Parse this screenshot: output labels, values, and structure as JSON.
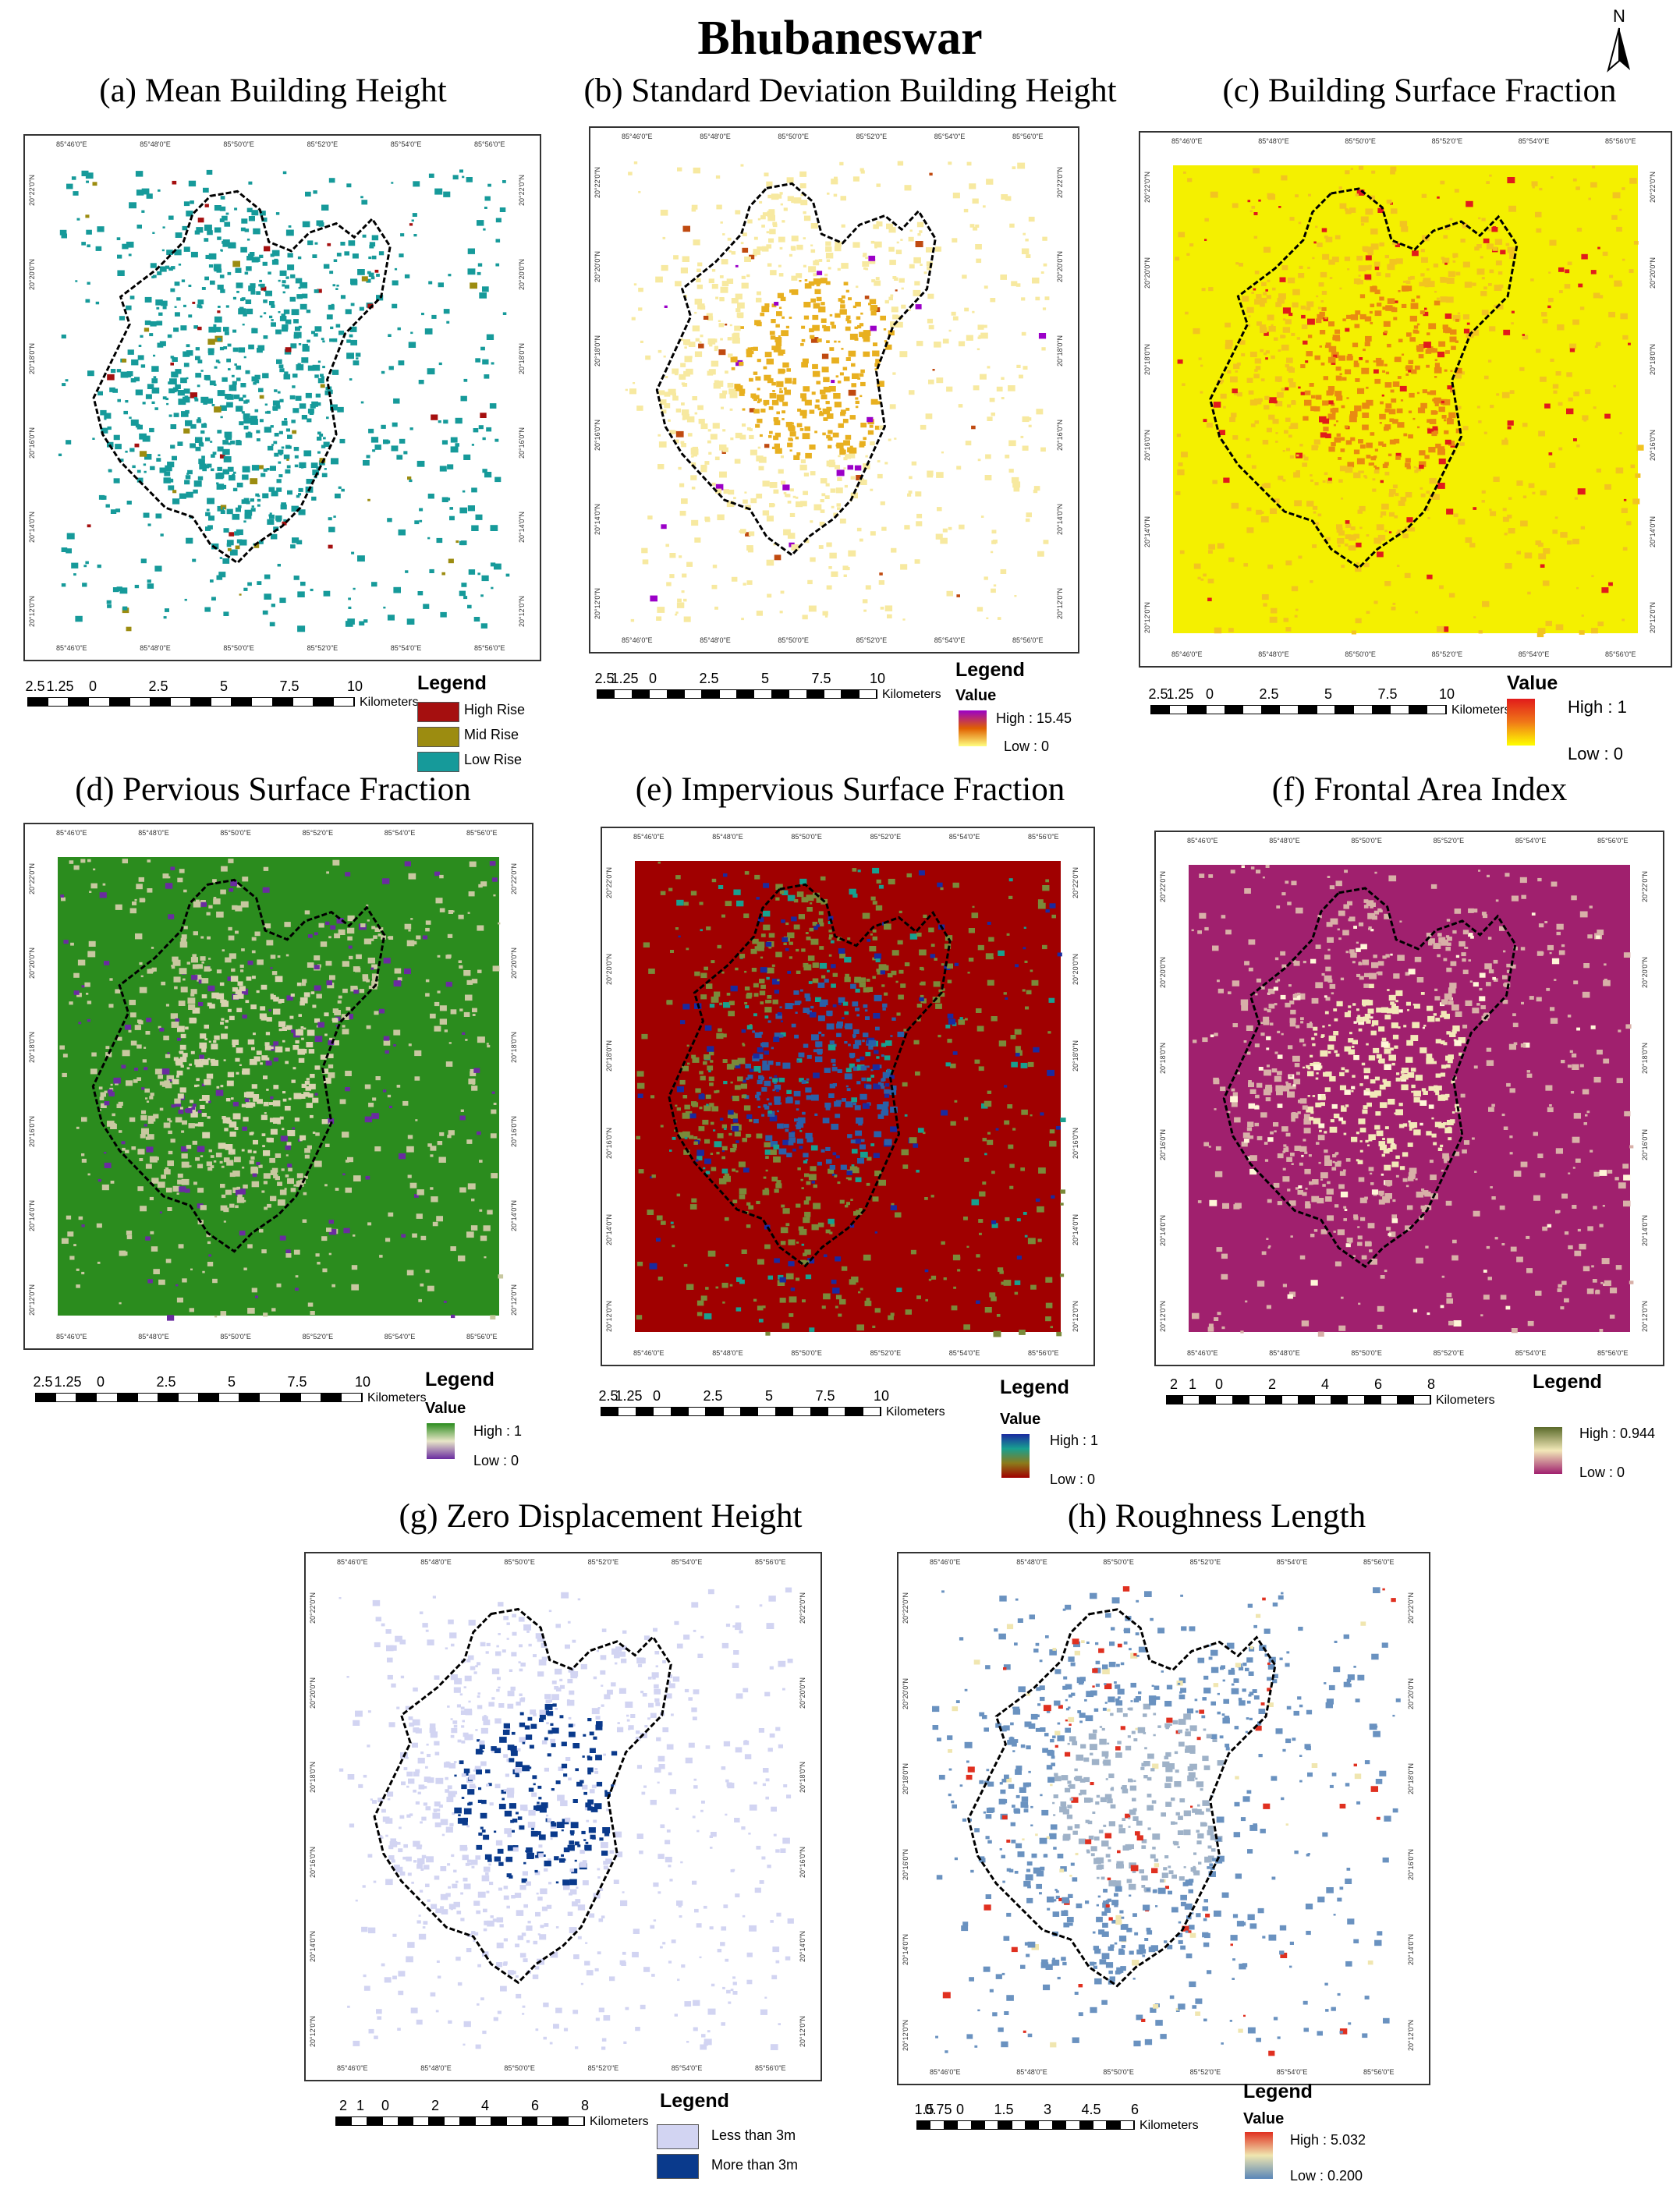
{
  "title": "Bhubaneswar",
  "north_label": "N",
  "panels": {
    "a": {
      "title": "(a) Mean Building Height",
      "scale": [
        "2.5",
        "1.25",
        "0",
        "2.5",
        "5",
        "7.5",
        "10"
      ],
      "unit": "Kilometers",
      "legend_title": "Legend",
      "classes": [
        {
          "label": "High Rise",
          "color": "#a50f0f"
        },
        {
          "label": "Mid Rise",
          "color": "#9c8c10"
        },
        {
          "label": "Low Rise",
          "color": "#169a9a"
        }
      ]
    },
    "b": {
      "title": "(b) Standard Deviation Building Height",
      "scale": [
        "2.5",
        "1.25",
        "0",
        "2.5",
        "5",
        "7.5",
        "10"
      ],
      "unit": "Kilometers",
      "legend_title": "Legend",
      "value_label": "Value",
      "high": "High : 15.45",
      "low": "Low : 0",
      "colors": [
        "#9b00c8",
        "#e06000",
        "#ffff80"
      ]
    },
    "c": {
      "title": "(c) Building Surface Fraction",
      "scale": [
        "2.5",
        "1.25",
        "0",
        "2.5",
        "5",
        "7.5",
        "10"
      ],
      "unit": "Kilometers",
      "value_label": "Value",
      "high": "High : 1",
      "low": "Low : 0",
      "colors": [
        "#e11b1b",
        "#f07818",
        "#ffff00"
      ]
    },
    "d": {
      "title": "(d) Pervious Surface Fraction",
      "scale": [
        "2.5",
        "1.25",
        "0",
        "2.5",
        "5",
        "7.5",
        "10"
      ],
      "unit": "Kilometers",
      "legend_title": "Legend",
      "value_label": "Value",
      "high": "High : 1",
      "low": "Low : 0",
      "colors": [
        "#2b8c1e",
        "#e8e6c8",
        "#6a2ca0"
      ]
    },
    "e": {
      "title": "(e) Impervious Surface Fraction",
      "scale": [
        "2.5",
        "1.25",
        "0",
        "2.5",
        "5",
        "7.5",
        "10"
      ],
      "unit": "Kilometers",
      "legend_title": "Legend",
      "value_label": "Value",
      "high": "High : 1",
      "low": "Low : 0",
      "colors": [
        "#1a2aa0",
        "#18a090",
        "#8c7a1a",
        "#a00000"
      ]
    },
    "f": {
      "title": "(f) Frontal Area Index",
      "scale": [
        "2",
        "1",
        "0",
        "2",
        "4",
        "6",
        "8"
      ],
      "unit": "Kilometers",
      "legend_title": "Legend",
      "high": "High : 0.944",
      "low": "Low : 0",
      "colors": [
        "#5a6a2a",
        "#f2e8b8",
        "#a0206e"
      ]
    },
    "g": {
      "title": "(g) Zero Displacement Height",
      "scale": [
        "2",
        "1",
        "0",
        "2",
        "4",
        "6",
        "8"
      ],
      "unit": "Kilometers",
      "legend_title": "Legend",
      "classes": [
        {
          "label": "Less than 3m",
          "color": "#d2d4f2"
        },
        {
          "label": "More than 3m",
          "color": "#0a3a8c"
        }
      ]
    },
    "h": {
      "title": "(h) Roughness Length",
      "scale": [
        "1.5",
        "0.75",
        "0",
        "1.5",
        "3",
        "4.5",
        "6"
      ],
      "unit": "Kilometers",
      "legend_title": "Legend",
      "value_label": "Value",
      "high": "High : 5.032",
      "low": "Low : 0.200",
      "colors": [
        "#e03020",
        "#f0e6b0",
        "#5a86b8"
      ]
    }
  },
  "coords": {
    "lon": [
      "85°46'0\"E",
      "85°48'0\"E",
      "85°50'0\"E",
      "85°52'0\"E",
      "85°54'0\"E",
      "85°56'0\"E"
    ],
    "lat": [
      "20°22'0\"N",
      "20°20'0\"N",
      "20°18'0\"N",
      "20°16'0\"N",
      "20°14'0\"N",
      "20°12'0\"N"
    ]
  }
}
